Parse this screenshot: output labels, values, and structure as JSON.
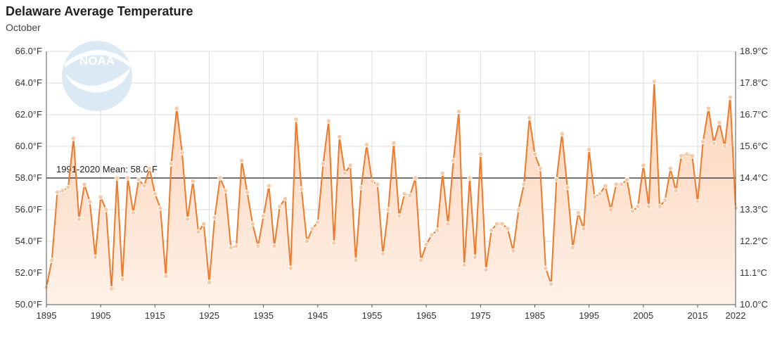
{
  "title": "Delaware Average Temperature",
  "subtitle": "October",
  "logo_text": "NOAA",
  "mean_label": "1991-2020 Mean: 58.0°F",
  "colors": {
    "line": "#ee7a2a",
    "fill_top": "#fdd2b6",
    "fill_bottom": "#fff1e8",
    "marker": "#fbc8a4",
    "mean_line": "#222222",
    "grid": "#dddddd",
    "logo": "#dbe9f4"
  },
  "chart_data": {
    "type": "area",
    "title": "Delaware Average Temperature",
    "subtitle": "October",
    "xlim": [
      1895,
      2022
    ],
    "ylim": [
      50,
      66
    ],
    "x_ticks": [
      1895,
      1905,
      1915,
      1925,
      1935,
      1945,
      1955,
      1965,
      1975,
      1985,
      1995,
      2005,
      2015,
      2022
    ],
    "y_ticks_left": [
      "50.0°F",
      "52.0°F",
      "54.0°F",
      "56.0°F",
      "58.0°F",
      "60.0°F",
      "62.0°F",
      "64.0°F",
      "66.0°F"
    ],
    "y_ticks_right": [
      "10.0°C",
      "11.1°C",
      "12.2°C",
      "13.3°C",
      "14.4°C",
      "15.6°C",
      "16.7°C",
      "17.8°C",
      "18.9°C"
    ],
    "mean": 58.0,
    "grid": true,
    "series": [
      {
        "x": [
          1895,
          1896,
          1897,
          1898,
          1899,
          1900,
          1901,
          1902,
          1903,
          1904,
          1905,
          1906,
          1907,
          1908,
          1909,
          1910,
          1911,
          1912,
          1913,
          1914,
          1915,
          1916,
          1917,
          1918,
          1919,
          1920,
          1921,
          1922,
          1923,
          1924,
          1925,
          1926,
          1927,
          1928,
          1929,
          1930,
          1931,
          1932,
          1933,
          1934,
          1935,
          1936,
          1937,
          1938,
          1939,
          1940,
          1941,
          1942,
          1943,
          1944,
          1945,
          1946,
          1947,
          1948,
          1949,
          1950,
          1951,
          1952,
          1953,
          1954,
          1955,
          1956,
          1957,
          1958,
          1959,
          1960,
          1961,
          1962,
          1963,
          1964,
          1965,
          1966,
          1967,
          1968,
          1969,
          1970,
          1971,
          1972,
          1973,
          1974,
          1975,
          1976,
          1977,
          1978,
          1979,
          1980,
          1981,
          1982,
          1983,
          1984,
          1985,
          1986,
          1987,
          1988,
          1989,
          1990,
          1991,
          1992,
          1993,
          1994,
          1995,
          1996,
          1997,
          1998,
          1999,
          2000,
          2001,
          2002,
          2003,
          2004,
          2005,
          2006,
          2007,
          2008,
          2009,
          2010,
          2011,
          2012,
          2013,
          2014,
          2015,
          2016,
          2017,
          2018,
          2019,
          2020,
          2021,
          2022
        ],
        "values": [
          51.1,
          52.8,
          57.1,
          57.2,
          57.4,
          60.5,
          55.4,
          57.6,
          56.5,
          53.0,
          56.8,
          56.0,
          51.0,
          58.0,
          51.6,
          58.0,
          55.8,
          57.9,
          57.5,
          58.6,
          57.0,
          56.1,
          51.8,
          58.9,
          62.4,
          59.6,
          55.4,
          57.8,
          54.6,
          55.1,
          51.4,
          55.5,
          58.0,
          57.2,
          53.6,
          53.7,
          59.1,
          57.1,
          55.1,
          53.7,
          55.6,
          57.5,
          53.7,
          56.2,
          56.7,
          52.3,
          61.7,
          57.3,
          54.0,
          54.8,
          55.2,
          58.9,
          61.6,
          53.9,
          60.6,
          58.3,
          58.8,
          52.8,
          57.4,
          60.1,
          57.8,
          57.6,
          53.2,
          56.0,
          60.2,
          55.6,
          57.0,
          56.9,
          58.0,
          52.8,
          53.8,
          54.4,
          54.7,
          58.3,
          55.1,
          59.1,
          62.2,
          52.5,
          58.0,
          53.0,
          59.5,
          52.2,
          54.7,
          55.1,
          55.1,
          54.8,
          53.4,
          56.0,
          57.6,
          61.8,
          59.5,
          58.6,
          52.3,
          51.3,
          57.9,
          60.8,
          57.4,
          53.6,
          55.8,
          54.8,
          59.8,
          56.8,
          57.0,
          57.5,
          56.0,
          57.6,
          57.6,
          57.9,
          55.9,
          56.2,
          58.8,
          56.2,
          64.1,
          56.2,
          56.6,
          58.6,
          57.2,
          59.4,
          59.5,
          59.4,
          56.5,
          60.3,
          62.4,
          60.2,
          61.5,
          60.0,
          63.1,
          56.1
        ]
      }
    ]
  }
}
